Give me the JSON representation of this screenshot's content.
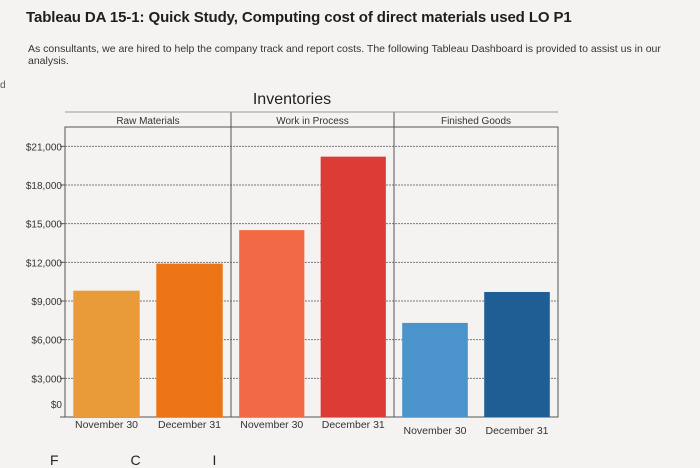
{
  "header": {
    "title": "Tableau DA 15-1: Quick Study, Computing cost of direct materials used LO P1",
    "intro": "As consultants, we are hired to help the company track and report costs. The following Tableau Dashboard is provided to assist us in our analysis."
  },
  "margin_mark": "d",
  "bottom_fragment": "F   C   I   ",
  "colors": {
    "background": "#f4f3f1",
    "rm_nov": "#e99a39",
    "rm_dec": "#ec7414",
    "wip_nov": "#f26a45",
    "wip_dec": "#dc3b36",
    "fg_nov": "#4b94cb",
    "fg_dec": "#1f5d95"
  },
  "chart_data": {
    "type": "bar",
    "title": "Inventories",
    "panels": [
      {
        "name": "Raw Materials",
        "categories": [
          "November 30",
          "December 31"
        ],
        "values": [
          9800,
          11900
        ]
      },
      {
        "name": "Work in Process",
        "categories": [
          "November 30",
          "December 31"
        ],
        "values": [
          14500,
          20200
        ]
      },
      {
        "name": "Finished Goods",
        "categories": [
          "November 30",
          "December 31"
        ],
        "values": [
          7300,
          9700
        ]
      }
    ],
    "ylim": [
      0,
      22500
    ],
    "yticks": [
      0,
      3000,
      6000,
      9000,
      12000,
      15000,
      18000,
      21000
    ],
    "ytick_labels": [
      "$0",
      "$3,000",
      "$6,000",
      "$9,000",
      "$12,000",
      "$15,000",
      "$18,000",
      "$21,000"
    ],
    "xlabel": "",
    "ylabel": "",
    "grid": true
  }
}
